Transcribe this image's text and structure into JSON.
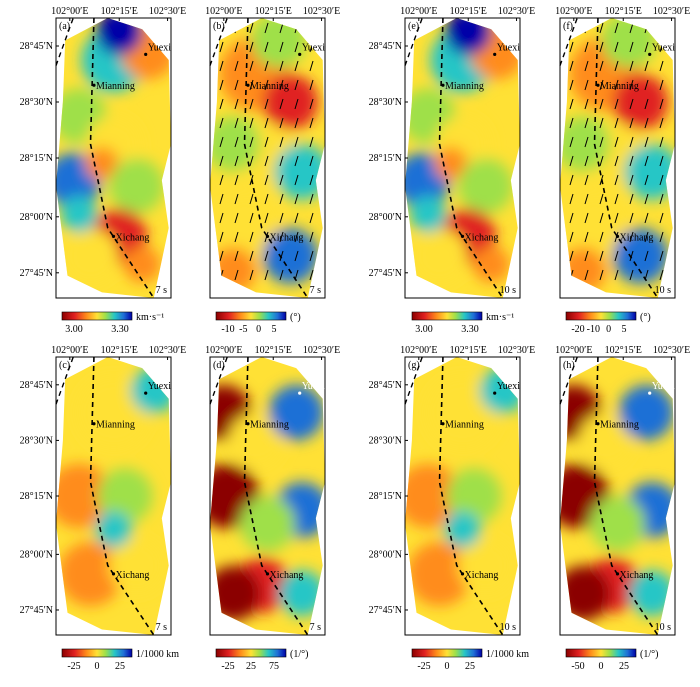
{
  "panels": [
    {
      "id": "a",
      "label": "(a)",
      "period": "7 s",
      "lon_ticks": [
        "102°00′E",
        "102°15′E",
        "102°30′E"
      ],
      "lat_ticks": [
        "28°45′N",
        "28°30′N",
        "28°15′N",
        "28°00′N",
        "27°45′N"
      ],
      "show_lat": true,
      "arrows": false,
      "scheme": "velocity",
      "cities": [
        "Yuexi",
        "Mianning",
        "Xichang"
      ]
    },
    {
      "id": "b",
      "label": "(b)",
      "period": "7 s",
      "lon_ticks": [
        "102°00′E",
        "102°15′E",
        "102°30′E"
      ],
      "lat_ticks": [],
      "show_lat": false,
      "arrows": true,
      "scheme": "angle",
      "cities": [
        "Yuexi",
        "Mianning",
        "Xichang"
      ]
    },
    {
      "id": "e",
      "label": "(e)",
      "period": "10 s",
      "lon_ticks": [
        "102°00′E",
        "102°15′E",
        "102°30′E"
      ],
      "lat_ticks": [
        "28°45′N",
        "28°30′N",
        "28°15′N",
        "28°00′N",
        "27°45′N"
      ],
      "show_lat": true,
      "arrows": false,
      "scheme": "velocity",
      "cities": [
        "Yuexi",
        "Mianning",
        "Xichang"
      ]
    },
    {
      "id": "f",
      "label": "(f)",
      "period": "10 s",
      "lon_ticks": [
        "102°00′E",
        "102°15′E",
        "102°30′E"
      ],
      "lat_ticks": [],
      "show_lat": false,
      "arrows": true,
      "scheme": "angle",
      "cities": [
        "Yuexi",
        "Mianning",
        "Xichang"
      ]
    },
    {
      "id": "c",
      "label": "(c)",
      "period": "7 s",
      "lon_ticks": [
        "102°00′E",
        "102°15′E",
        "102°30′E"
      ],
      "lat_ticks": [
        "28°45′N",
        "28°30′N",
        "28°15′N",
        "28°00′N",
        "27°45′N"
      ],
      "show_lat": true,
      "arrows": false,
      "scheme": "gradient",
      "cities": [
        "Yuexi",
        "Mianning",
        "Xichang"
      ]
    },
    {
      "id": "d",
      "label": "(d)",
      "period": "7 s",
      "lon_ticks": [
        "102°00′E",
        "102°15′E",
        "102°30′E"
      ],
      "lat_ticks": [],
      "show_lat": false,
      "arrows": false,
      "scheme": "laplacian",
      "cities": [
        "Yuexi",
        "Mianning",
        "Xichang"
      ]
    },
    {
      "id": "g",
      "label": "(g)",
      "period": "10 s",
      "lon_ticks": [
        "102°00′E",
        "102°15′E",
        "102°30′E"
      ],
      "lat_ticks": [
        "28°45′N",
        "28°30′N",
        "28°15′N",
        "28°00′N",
        "27°45′N"
      ],
      "show_lat": true,
      "arrows": false,
      "scheme": "gradient",
      "cities": [
        "Yuexi",
        "Mianning",
        "Xichang"
      ]
    },
    {
      "id": "h",
      "label": "(h)",
      "period": "10 s",
      "lon_ticks": [
        "102°00′E",
        "102°15′E",
        "102°30′E"
      ],
      "lat_ticks": [],
      "show_lat": false,
      "arrows": false,
      "scheme": "laplacian",
      "cities": [
        "Yuexi",
        "Mianning",
        "Xichang"
      ]
    }
  ],
  "colorbars": [
    {
      "id": "cb-a",
      "ticks": [
        "3.00",
        "3.30"
      ],
      "unit": "km·s⁻¹"
    },
    {
      "id": "cb-b",
      "ticks": [
        "-10",
        "-5",
        "0",
        "5"
      ],
      "unit": "(°)"
    },
    {
      "id": "cb-e",
      "ticks": [
        "3.00",
        "3.30"
      ],
      "unit": "km·s⁻¹"
    },
    {
      "id": "cb-f",
      "ticks": [
        "-20",
        "-10",
        "0",
        "5"
      ],
      "unit": "(°)"
    },
    {
      "id": "cb-c",
      "ticks": [
        "-25",
        "0",
        "25"
      ],
      "unit": "1/1000 km"
    },
    {
      "id": "cb-d",
      "ticks": [
        "-25",
        "25",
        "75"
      ],
      "unit": "(1/°)"
    },
    {
      "id": "cb-g",
      "ticks": [
        "-25",
        "0",
        "25"
      ],
      "unit": "1/1000 km"
    },
    {
      "id": "cb-h",
      "ticks": [
        "-50",
        "0",
        "25"
      ],
      "unit": "(1/°)"
    }
  ],
  "colors": {
    "palette": [
      "#8b0000",
      "#e02020",
      "#ff8c1a",
      "#ffe135",
      "#9fe04a",
      "#27c6c6",
      "#1f6fd6",
      "#0000a8"
    ]
  }
}
